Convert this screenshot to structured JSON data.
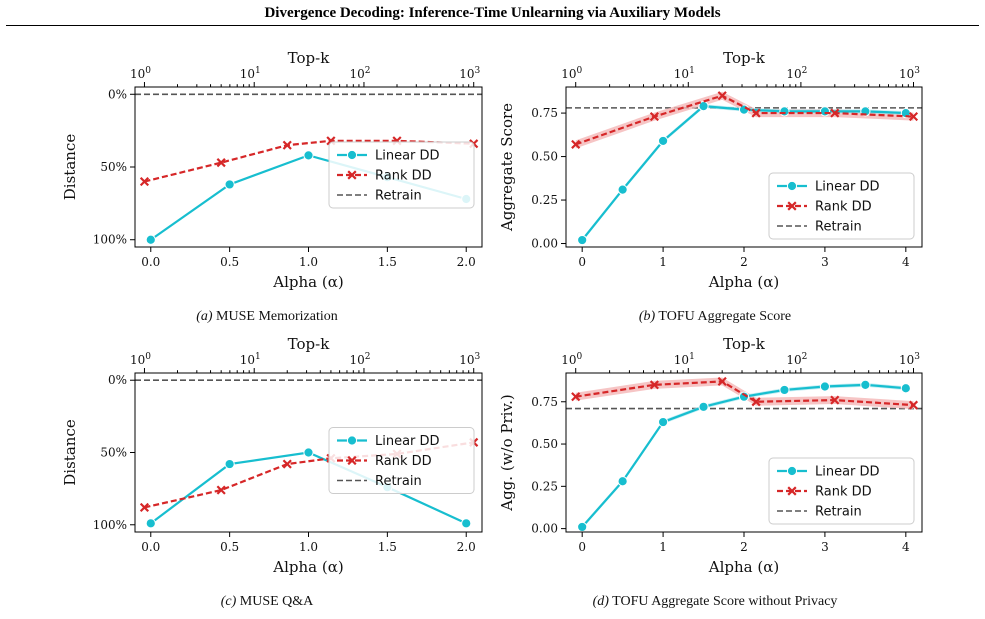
{
  "header": {
    "title": "Divergence Decoding: Inference-Time Unlearning via Auxiliary Models"
  },
  "colors": {
    "linear": "#17becf",
    "rank": "#d62728",
    "retrain": "#555555",
    "band": "#f4b6b7"
  },
  "legend": {
    "linear": "Linear DD",
    "rank": "Rank DD",
    "retrain": "Retrain"
  },
  "chart_data": [
    {
      "id": "a",
      "type": "line",
      "caption_tag": "(a)",
      "caption": "MUSE Memorization",
      "xlabel": "Alpha (α)",
      "ylabel": "Distance",
      "top_xlabel": "Top-k",
      "xlim": [
        -0.1,
        2.1
      ],
      "ylim": [
        -5,
        105
      ],
      "y_inverted": true,
      "xticks": [
        0,
        0.5,
        1,
        1.5,
        2
      ],
      "xtick_labels": [
        "0.0",
        "0.5",
        "1.0",
        "1.5",
        "2.0"
      ],
      "yticks": [
        0,
        50,
        100
      ],
      "ytick_labels": [
        "0%",
        "50%",
        "100%"
      ],
      "top_xlim": [
        0.82,
        1190
      ],
      "top_xticks": [
        1,
        10,
        100,
        1000
      ],
      "top_xtick_labels": [
        "10",
        "10",
        "10",
        "10"
      ],
      "top_xtick_exps": [
        "0",
        "1",
        "2",
        "3"
      ],
      "legend_position": "center-right",
      "retrain": 0,
      "series": [
        {
          "key": "linear",
          "name": "Linear DD",
          "x": [
            0,
            0.5,
            1.0,
            1.5,
            2.0
          ],
          "y": [
            100,
            62,
            42,
            57,
            72
          ]
        },
        {
          "key": "rank",
          "name": "Rank DD",
          "k": [
            1,
            5,
            20,
            50,
            200,
            1000
          ],
          "y": [
            60,
            47,
            35,
            32,
            32,
            34
          ]
        }
      ]
    },
    {
      "id": "b",
      "type": "line",
      "caption_tag": "(b)",
      "caption": "TOFU Aggregate Score",
      "xlabel": "Alpha (α)",
      "ylabel": "Aggregate Score",
      "top_xlabel": "Top-k",
      "xlim": [
        -0.2,
        4.2
      ],
      "ylim": [
        -0.02,
        0.9
      ],
      "y_inverted": false,
      "xticks": [
        0,
        1,
        2,
        3,
        4
      ],
      "xtick_labels": [
        "0",
        "1",
        "2",
        "3",
        "4"
      ],
      "yticks": [
        0,
        0.25,
        0.5,
        0.75
      ],
      "ytick_labels": [
        "0.00",
        "0.25",
        "0.50",
        "0.75"
      ],
      "top_xlim": [
        0.82,
        1190
      ],
      "top_xticks": [
        1,
        10,
        100,
        1000
      ],
      "top_xtick_labels": [
        "10",
        "10",
        "10",
        "10"
      ],
      "top_xtick_exps": [
        "0",
        "1",
        "2",
        "3"
      ],
      "legend_position": "lower-right",
      "retrain": 0.78,
      "series": [
        {
          "key": "linear",
          "name": "Linear DD",
          "x": [
            0,
            0.5,
            1.0,
            1.5,
            2.0,
            2.5,
            3.0,
            3.5,
            4.0
          ],
          "y": [
            0.02,
            0.31,
            0.59,
            0.79,
            0.77,
            0.76,
            0.76,
            0.76,
            0.75
          ]
        },
        {
          "key": "rank",
          "name": "Rank DD",
          "k": [
            1,
            5,
            20,
            40,
            200,
            1000
          ],
          "y": [
            0.57,
            0.73,
            0.85,
            0.75,
            0.75,
            0.73
          ]
        }
      ]
    },
    {
      "id": "c",
      "type": "line",
      "caption_tag": "(c)",
      "caption": "MUSE Q&A",
      "xlabel": "Alpha (α)",
      "ylabel": "Distance",
      "top_xlabel": "Top-k",
      "xlim": [
        -0.1,
        2.1
      ],
      "ylim": [
        -5,
        105
      ],
      "y_inverted": true,
      "xticks": [
        0,
        0.5,
        1,
        1.5,
        2
      ],
      "xtick_labels": [
        "0.0",
        "0.5",
        "1.0",
        "1.5",
        "2.0"
      ],
      "yticks": [
        0,
        50,
        100
      ],
      "ytick_labels": [
        "0%",
        "50%",
        "100%"
      ],
      "top_xlim": [
        0.82,
        1190
      ],
      "top_xticks": [
        1,
        10,
        100,
        1000
      ],
      "top_xtick_labels": [
        "10",
        "10",
        "10",
        "10"
      ],
      "top_xtick_exps": [
        "0",
        "1",
        "2",
        "3"
      ],
      "legend_position": "center-right",
      "retrain": 0,
      "series": [
        {
          "key": "linear",
          "name": "Linear DD",
          "x": [
            0,
            0.5,
            1.0,
            1.5,
            2.0
          ],
          "y": [
            99,
            58,
            50,
            74,
            99
          ]
        },
        {
          "key": "rank",
          "name": "Rank DD",
          "k": [
            1,
            5,
            20,
            50,
            200,
            1000
          ],
          "y": [
            88,
            76,
            58,
            54,
            51,
            43
          ]
        }
      ]
    },
    {
      "id": "d",
      "type": "line",
      "caption_tag": "(d)",
      "caption": "TOFU Aggregate Score without Privacy",
      "xlabel": "Alpha (α)",
      "ylabel": "Agg. (w/o Priv.)",
      "top_xlabel": "Top-k",
      "xlim": [
        -0.2,
        4.2
      ],
      "ylim": [
        -0.02,
        0.92
      ],
      "y_inverted": false,
      "xticks": [
        0,
        1,
        2,
        3,
        4
      ],
      "xtick_labels": [
        "0",
        "1",
        "2",
        "3",
        "4"
      ],
      "yticks": [
        0,
        0.25,
        0.5,
        0.75
      ],
      "ytick_labels": [
        "0.00",
        "0.25",
        "0.50",
        "0.75"
      ],
      "top_xlim": [
        0.82,
        1190
      ],
      "top_xticks": [
        1,
        10,
        100,
        1000
      ],
      "top_xtick_labels": [
        "10",
        "10",
        "10",
        "10"
      ],
      "top_xtick_exps": [
        "0",
        "1",
        "2",
        "3"
      ],
      "legend_position": "lower-right",
      "retrain": 0.71,
      "series": [
        {
          "key": "linear",
          "name": "Linear DD",
          "x": [
            0,
            0.5,
            1.0,
            1.5,
            2.0,
            2.5,
            3.0,
            3.5,
            4.0
          ],
          "y": [
            0.01,
            0.28,
            0.63,
            0.72,
            0.78,
            0.82,
            0.84,
            0.85,
            0.83
          ]
        },
        {
          "key": "rank",
          "name": "Rank DD",
          "k": [
            1,
            5,
            20,
            40,
            200,
            1000
          ],
          "y": [
            0.78,
            0.85,
            0.87,
            0.75,
            0.76,
            0.73
          ]
        }
      ]
    }
  ]
}
